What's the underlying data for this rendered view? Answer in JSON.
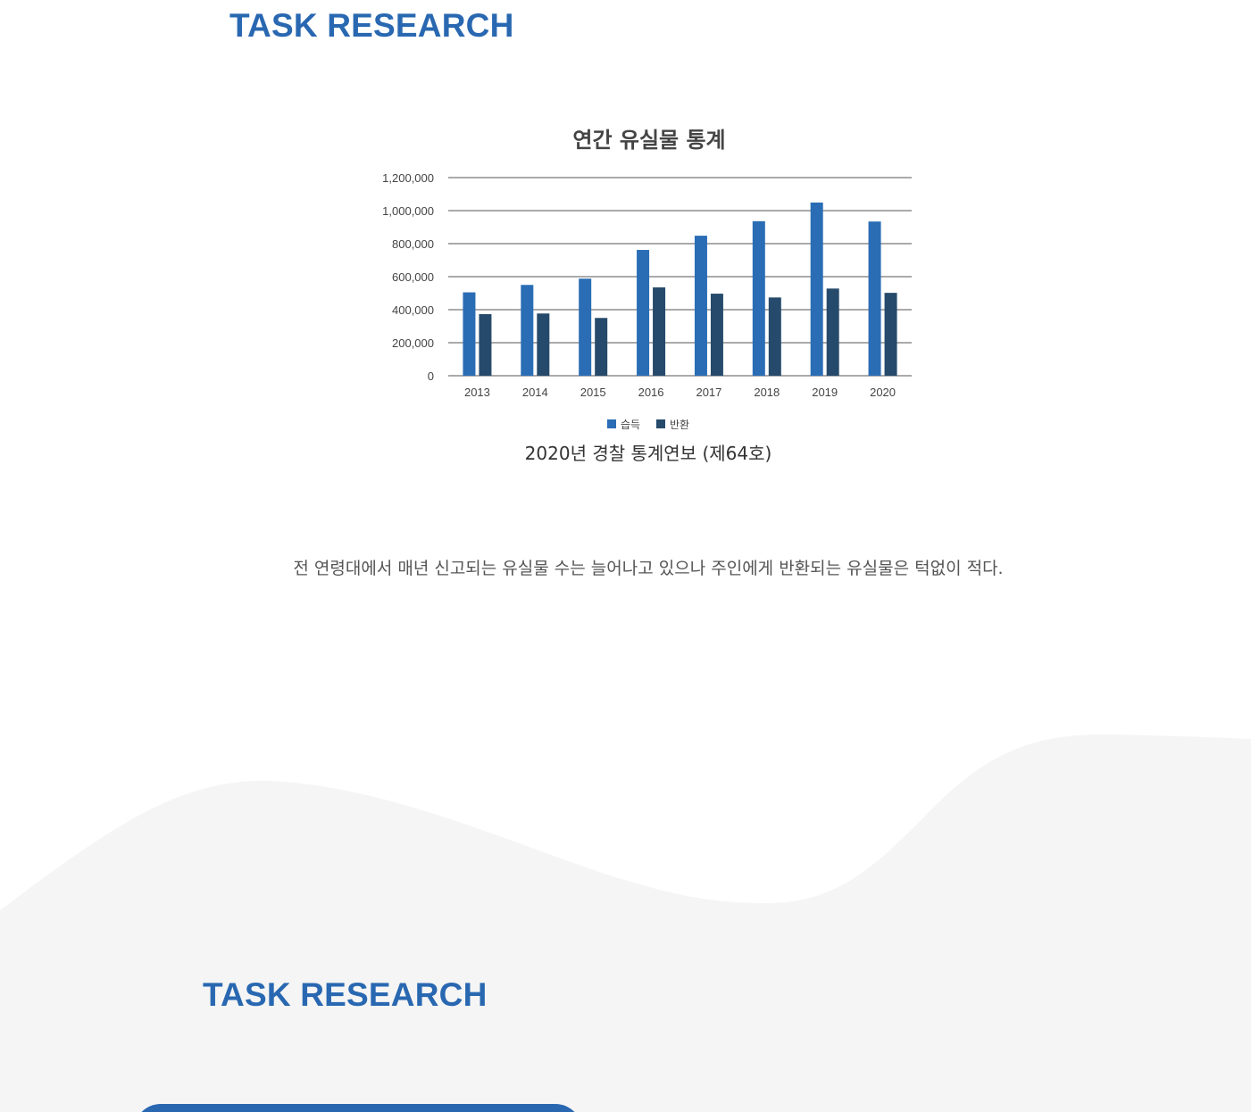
{
  "sections": {
    "top_title": "TASK RESEARCH",
    "bottom_title": "TASK RESEARCH"
  },
  "chart_data": {
    "type": "bar",
    "title": "연간 유실물 통계",
    "categories": [
      "2013",
      "2014",
      "2015",
      "2016",
      "2017",
      "2018",
      "2019",
      "2020"
    ],
    "series": [
      {
        "name": "습득",
        "color": "#2a6db5",
        "values": [
          505000,
          550000,
          588000,
          762000,
          848000,
          936000,
          1049000,
          934000
        ]
      },
      {
        "name": "반환",
        "color": "#264a6b",
        "values": [
          373000,
          377000,
          350000,
          535000,
          497000,
          474000,
          528000,
          502000
        ]
      }
    ],
    "y_ticks": [
      "0",
      "200,000",
      "400,000",
      "600,000",
      "800,000",
      "1,000,000",
      "1,200,000"
    ],
    "ylim": [
      0,
      1200000
    ],
    "xlabel": "",
    "ylabel": "",
    "grid": true,
    "legend": "bottom"
  },
  "chart_source": "2020년 경찰 통계연보 (제64호)",
  "description": "전 연령대에서 매년 신고되는 유실물 수는 늘어나고 있으나 주인에게 반환되는 유실물은 턱없이 적다.",
  "colors": {
    "brand_blue": "#2968b1",
    "wave_gray": "#f5f5f5"
  }
}
